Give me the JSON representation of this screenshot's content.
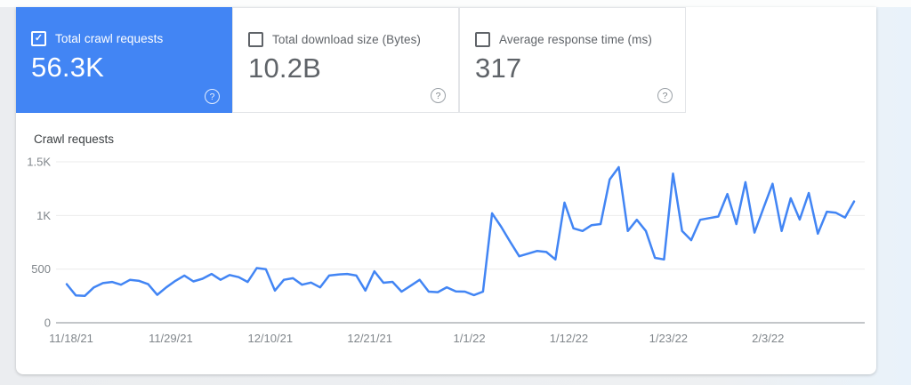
{
  "icons": {
    "help": "?",
    "check": "✓"
  },
  "colors": {
    "accent": "#4285f4",
    "line": "#4285f4",
    "selected_card_bg": "#4285f4",
    "muted_text": "#5f6368",
    "tick_text": "#80868b"
  },
  "cards": [
    {
      "label": "Total crawl requests",
      "value": "56.3K",
      "checked": true,
      "selected": true
    },
    {
      "label": "Total download size (Bytes)",
      "value": "10.2B",
      "checked": false,
      "selected": false
    },
    {
      "label": "Average response time (ms)",
      "value": "317",
      "checked": false,
      "selected": false
    }
  ],
  "chart_data": {
    "type": "line",
    "title": "Crawl requests",
    "x_unit": "day",
    "x_start_label": "11/18/21",
    "x_tick_labels": [
      "11/18/21",
      "11/29/21",
      "12/10/21",
      "12/21/21",
      "1/1/22",
      "1/12/22",
      "1/23/22",
      "2/3/22"
    ],
    "x_tick_day_indices": [
      0,
      11,
      22,
      33,
      44,
      55,
      66,
      77
    ],
    "y_tick_labels": [
      "0",
      "500",
      "1K",
      "1.5K"
    ],
    "y_tick_values": [
      0,
      500,
      1000,
      1500
    ],
    "ylim": [
      0,
      1500
    ],
    "grid": "horizontal",
    "legend": "none",
    "series": [
      {
        "name": "Crawl requests",
        "values": [
          360,
          255,
          250,
          330,
          370,
          380,
          355,
          400,
          390,
          360,
          260,
          330,
          390,
          440,
          385,
          410,
          455,
          400,
          445,
          425,
          380,
          510,
          500,
          300,
          400,
          415,
          355,
          375,
          330,
          440,
          450,
          455,
          440,
          300,
          480,
          373,
          381,
          290,
          345,
          400,
          290,
          285,
          331,
          292,
          290,
          258,
          290,
          1020,
          895,
          755,
          620,
          645,
          670,
          660,
          590,
          1120,
          880,
          855,
          910,
          920,
          1335,
          1450,
          855,
          960,
          855,
          605,
          590,
          1390,
          855,
          770,
          960,
          975,
          990,
          1200,
          920,
          1310,
          840,
          1070,
          1295,
          855,
          1160,
          962,
          1210,
          830,
          1035,
          1025,
          980,
          1130
        ]
      }
    ]
  }
}
